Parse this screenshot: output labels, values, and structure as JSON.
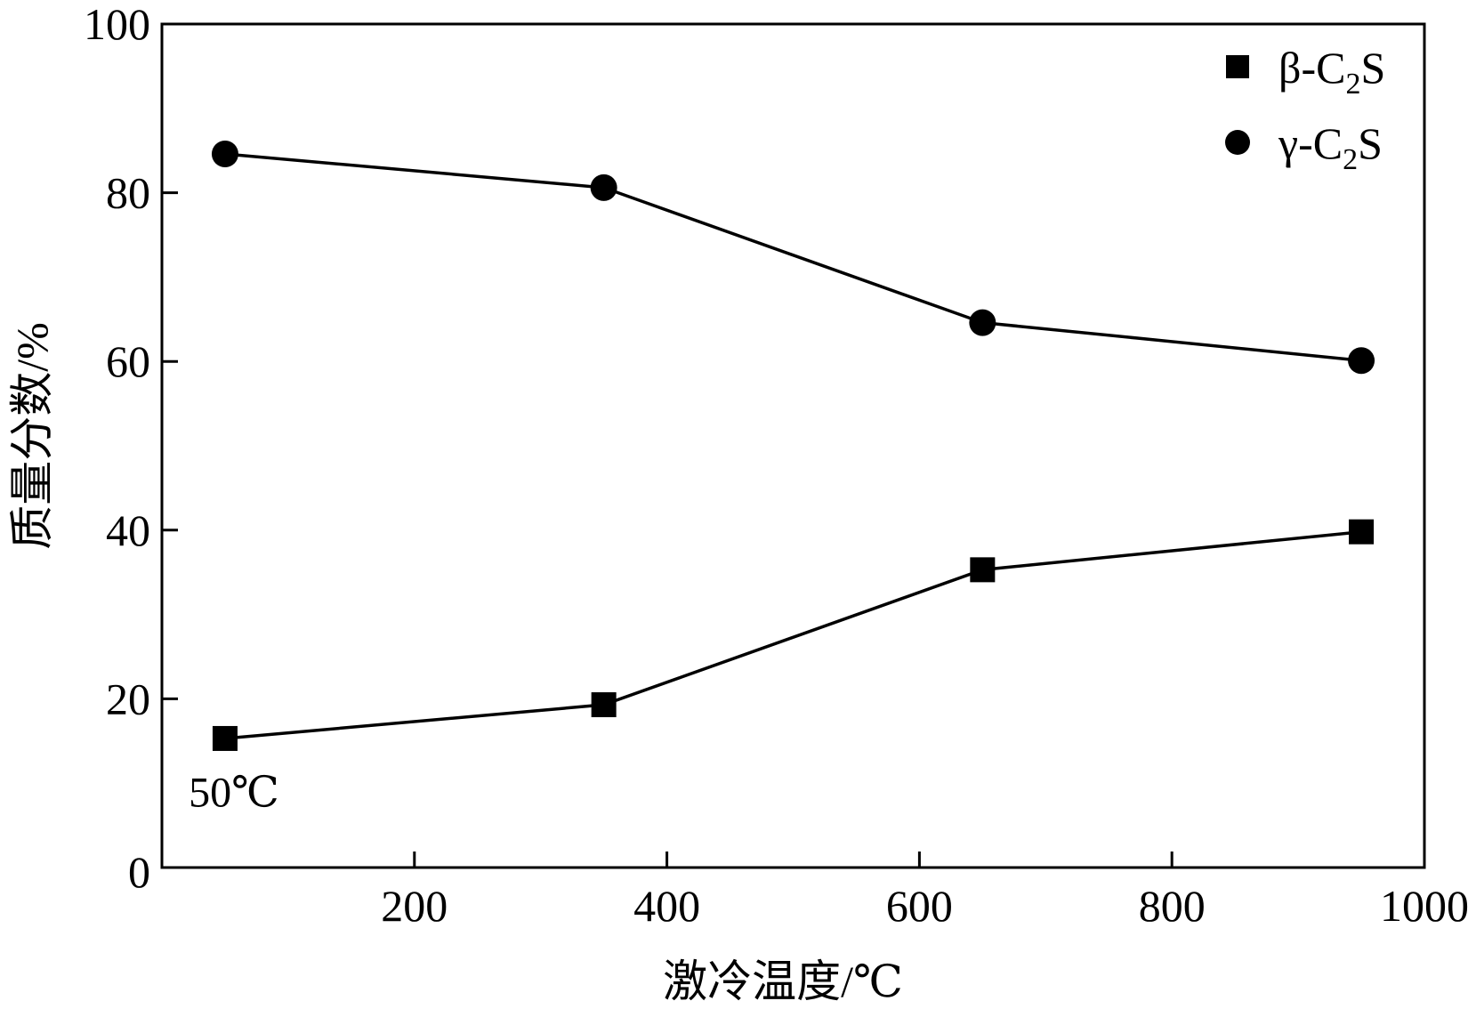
{
  "chart_data": {
    "type": "line",
    "xlabel": "激冷温度/℃",
    "ylabel": "质量分数/%",
    "xlim": [
      0,
      1000
    ],
    "ylim": [
      0,
      100
    ],
    "x_ticks": [
      200,
      400,
      600,
      800,
      1000
    ],
    "y_ticks": [
      0,
      20,
      40,
      60,
      80,
      100
    ],
    "grid": false,
    "legend_position": "top-right",
    "x": [
      50,
      350,
      650,
      950
    ],
    "series": [
      {
        "name": "β-C2S",
        "legend_main": "β-C",
        "legend_sub": "2",
        "legend_tail": "S",
        "marker": "square",
        "color": "#000000",
        "values": [
          15.3,
          19.3,
          35.3,
          39.8
        ]
      },
      {
        "name": "γ-C2S",
        "legend_main": "γ-C",
        "legend_sub": "2",
        "legend_tail": "S",
        "marker": "circle",
        "color": "#000000",
        "values": [
          84.6,
          80.6,
          64.6,
          60.1
        ]
      }
    ],
    "annotations": [
      {
        "text": "50℃",
        "x": 50,
        "y": 9
      }
    ]
  }
}
